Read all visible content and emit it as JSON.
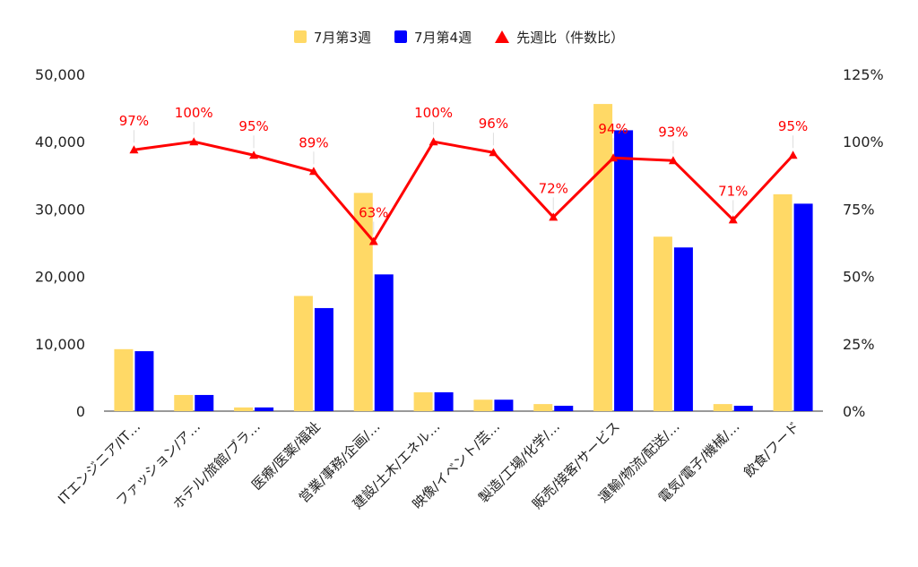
{
  "chart_data": {
    "type": "bar",
    "categories": [
      "ITエンジニア/IT…",
      "ファッション/ア…",
      "ホテル/旅館/ブラ…",
      "医療/医薬/福祉",
      "営業/事務/企画/…",
      "建設/土木/エネル…",
      "映像/イベント/芸…",
      "製造/工場/化学/…",
      "販売/接客/サービス",
      "運輸/物流/配送/…",
      "電気/電子/機械/…",
      "飲食/フード"
    ],
    "series": [
      {
        "name": "7月第3週",
        "color": "#ffd966",
        "axis": "left",
        "values": [
          9200,
          2400,
          550,
          17100,
          32400,
          2800,
          1700,
          1050,
          45600,
          25900,
          1050,
          32200
        ]
      },
      {
        "name": "7月第4週",
        "color": "#0000ff",
        "axis": "left",
        "values": [
          8900,
          2400,
          550,
          15300,
          20300,
          2800,
          1700,
          800,
          41700,
          24300,
          800,
          30800
        ]
      },
      {
        "name": "先週比（件数比）",
        "color": "#ff0000",
        "axis": "right",
        "type": "line",
        "values": [
          97,
          100,
          95,
          89,
          63,
          100,
          96,
          72,
          94,
          93,
          71,
          95
        ],
        "labels": [
          "97%",
          "100%",
          "95%",
          "89%",
          "63%",
          "100%",
          "96%",
          "72%",
          "94%",
          "93%",
          "71%",
          "95%"
        ]
      }
    ],
    "y_left": {
      "min": 0,
      "max": 50000,
      "ticks": [
        "0",
        "10,000",
        "20,000",
        "30,000",
        "40,000",
        "50,000"
      ]
    },
    "y_right": {
      "min": 0,
      "max": 125,
      "ticks": [
        "0%",
        "25%",
        "50%",
        "75%",
        "100%",
        "125%"
      ]
    },
    "grid": false,
    "legend_position": "top-center"
  }
}
